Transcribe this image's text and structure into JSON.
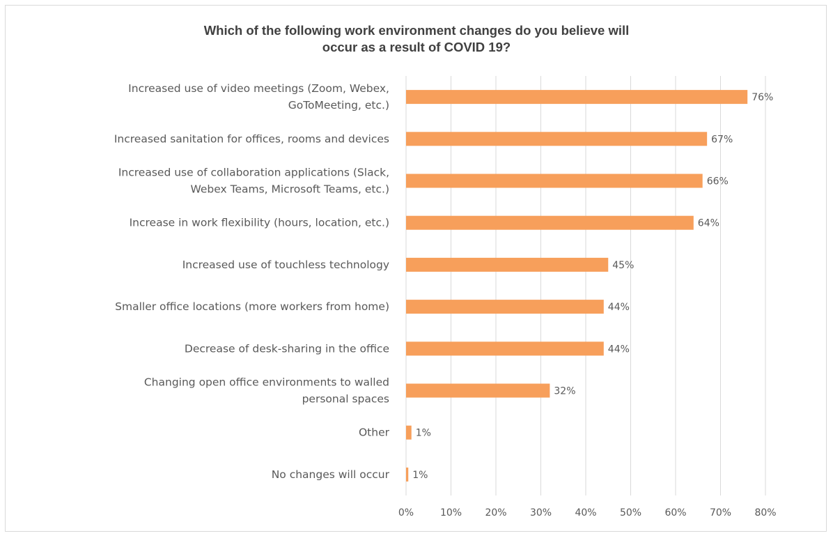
{
  "chart_data": {
    "type": "bar",
    "orientation": "horizontal",
    "title_lines": [
      "Which of the following work environment changes do you believe will",
      "occur as a result of COVID 19?"
    ],
    "categories": [
      [
        "Increased use of video meetings (Zoom, Webex,",
        "GoToMeeting, etc.)"
      ],
      [
        "Increased sanitation for offices, rooms and devices"
      ],
      [
        "Increased use of collaboration applications (Slack,",
        "Webex Teams, Microsoft Teams, etc.)"
      ],
      [
        "Increase in work flexibility (hours, location, etc.)"
      ],
      [
        "Increased use of touchless technology"
      ],
      [
        "Smaller office locations (more workers from home)"
      ],
      [
        "Decrease of desk-sharing in the office"
      ],
      [
        "Changing open office environments to walled",
        "personal spaces"
      ],
      [
        "Other"
      ],
      [
        "No changes will occur"
      ]
    ],
    "values": [
      0.76,
      0.67,
      0.66,
      0.64,
      0.45,
      0.44,
      0.44,
      0.32,
      0.012,
      0.005
    ],
    "value_labels": [
      "76%",
      "67%",
      "66%",
      "64%",
      "45%",
      "44%",
      "44%",
      "32%",
      "1%",
      "1%"
    ],
    "xlim": [
      0,
      0.8
    ],
    "xticks": [
      0,
      0.1,
      0.2,
      0.3,
      0.4,
      0.5,
      0.6,
      0.7,
      0.8
    ],
    "xtick_labels": [
      "0%",
      "10%",
      "20%",
      "30%",
      "40%",
      "50%",
      "60%",
      "70%",
      "80%"
    ],
    "grid": "vertical",
    "legend": "none",
    "bar_color": "#f79f5b",
    "gridline_color": "#d9d9d9",
    "text_color": "#595959"
  }
}
